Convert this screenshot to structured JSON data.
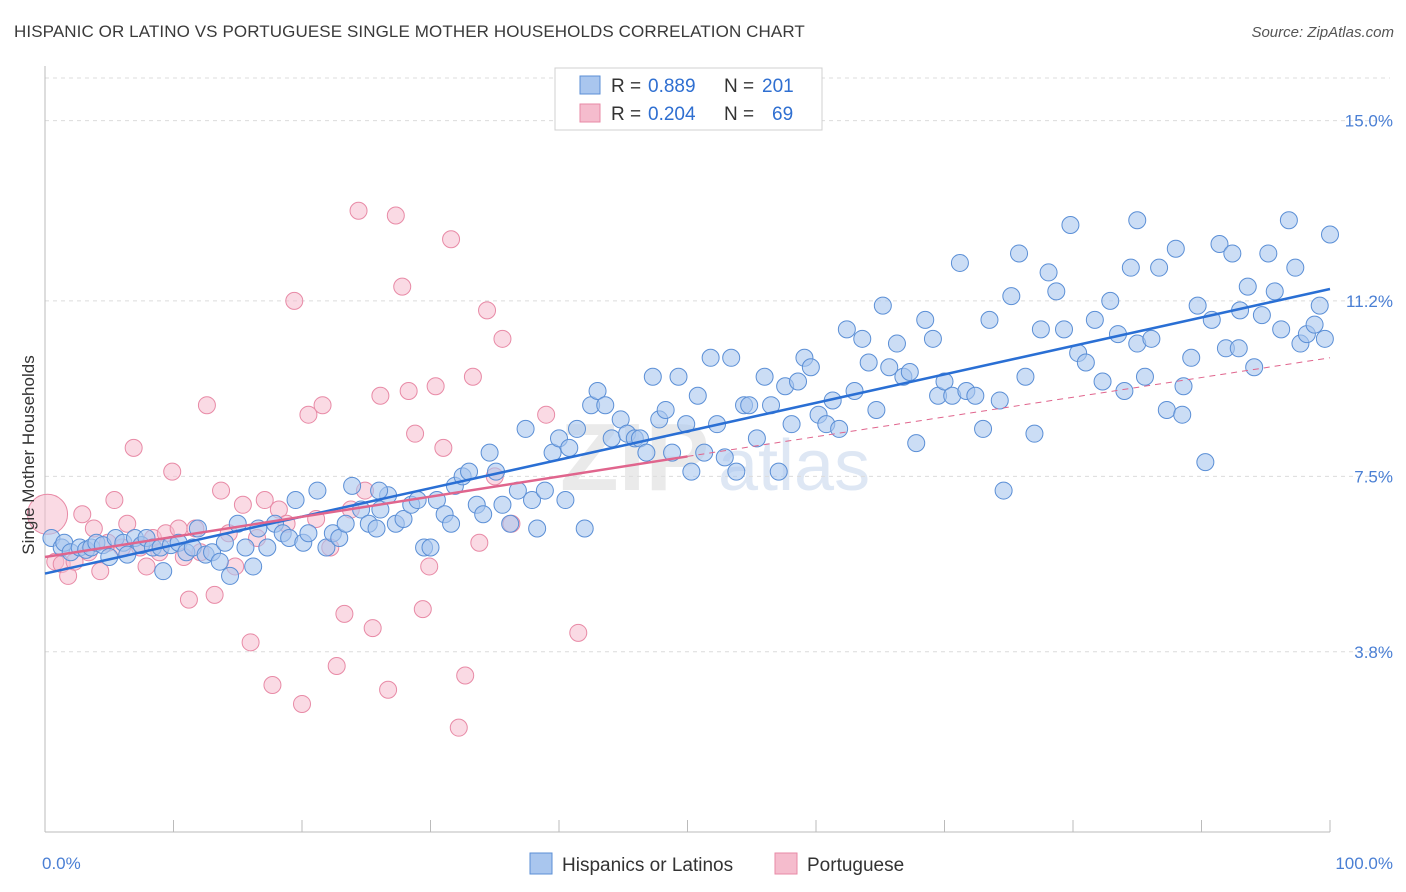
{
  "title": "HISPANIC OR LATINO VS PORTUGUESE SINGLE MOTHER HOUSEHOLDS CORRELATION CHART",
  "source": "Source: ZipAtlas.com",
  "watermark": {
    "zip": "ZIP",
    "atlas": "atlas"
  },
  "colors": {
    "blue_fill": "#a9c6ee",
    "blue_stroke": "#5b8fd6",
    "blue_line": "#2a6fd4",
    "pink_fill": "#f5bccd",
    "pink_stroke": "#e88aa6",
    "pink_line": "#e0658d",
    "grid": "#dcdcdc",
    "axis_text": "#4a7fd4"
  },
  "legend": {
    "rows": [
      {
        "r_label": "R =",
        "r_value": "0.889",
        "n_label": "N =",
        "n_value": "201"
      },
      {
        "r_label": "R =",
        "r_value": "0.204",
        "n_label": "N =",
        "n_value": "69"
      }
    ]
  },
  "chart_data": {
    "type": "scatter",
    "title": "HISPANIC OR LATINO VS PORTUGUESE SINGLE MOTHER HOUSEHOLDS CORRELATION CHART",
    "xlabel": "",
    "ylabel": "Single Mother Households",
    "xlim": [
      0,
      100
    ],
    "ylim": [
      0,
      15.9
    ],
    "x_tick_labels": [
      "0.0%",
      "100.0%"
    ],
    "y_ticks": [
      3.8,
      7.5,
      11.2,
      15.0
    ],
    "y_tick_labels": [
      "3.8%",
      "7.5%",
      "11.2%",
      "15.0%"
    ],
    "grid": true,
    "legend_position": "top-center",
    "series": [
      {
        "name": "Hispanics or Latinos",
        "color": "#a9c6ee",
        "trend": {
          "x": [
            0,
            100
          ],
          "y": [
            5.45,
            11.45
          ],
          "style": "solid"
        },
        "points": [
          [
            0.5,
            6.2
          ],
          [
            1.3,
            6.0
          ],
          [
            1.5,
            6.1
          ],
          [
            2.0,
            5.9
          ],
          [
            2.7,
            6.0
          ],
          [
            3.2,
            5.95
          ],
          [
            3.6,
            6.0
          ],
          [
            4.0,
            6.1
          ],
          [
            4.5,
            6.05
          ],
          [
            5.0,
            5.8
          ],
          [
            5.5,
            6.2
          ],
          [
            6.1,
            6.1
          ],
          [
            6.4,
            5.85
          ],
          [
            7.0,
            6.2
          ],
          [
            7.5,
            6.05
          ],
          [
            7.9,
            6.2
          ],
          [
            8.4,
            6.0
          ],
          [
            9.0,
            6.0
          ],
          [
            9.2,
            5.5
          ],
          [
            9.8,
            6.05
          ],
          [
            10.4,
            6.1
          ],
          [
            11.0,
            5.9
          ],
          [
            11.5,
            6.0
          ],
          [
            11.9,
            6.4
          ],
          [
            12.5,
            5.85
          ],
          [
            13.0,
            5.9
          ],
          [
            13.6,
            5.7
          ],
          [
            14.0,
            6.1
          ],
          [
            14.4,
            5.4
          ],
          [
            15.0,
            6.5
          ],
          [
            15.6,
            6.0
          ],
          [
            16.2,
            5.6
          ],
          [
            16.6,
            6.4
          ],
          [
            17.3,
            6.0
          ],
          [
            17.9,
            6.5
          ],
          [
            18.5,
            6.3
          ],
          [
            19.0,
            6.2
          ],
          [
            19.5,
            7.0
          ],
          [
            20.1,
            6.1
          ],
          [
            20.5,
            6.3
          ],
          [
            21.2,
            7.2
          ],
          [
            21.9,
            6.0
          ],
          [
            22.4,
            6.3
          ],
          [
            22.9,
            6.2
          ],
          [
            23.4,
            6.5
          ],
          [
            23.9,
            7.3
          ],
          [
            24.6,
            6.8
          ],
          [
            25.2,
            6.5
          ],
          [
            25.8,
            6.4
          ],
          [
            26.1,
            6.8
          ],
          [
            26.7,
            7.1
          ],
          [
            27.3,
            6.5
          ],
          [
            27.9,
            6.6
          ],
          [
            28.5,
            6.9
          ],
          [
            29.0,
            7.0
          ],
          [
            29.5,
            6.0
          ],
          [
            30.0,
            6.0
          ],
          [
            30.5,
            7.0
          ],
          [
            31.1,
            6.7
          ],
          [
            31.6,
            6.5
          ],
          [
            31.9,
            7.3
          ],
          [
            32.5,
            7.5
          ],
          [
            33.0,
            7.6
          ],
          [
            33.6,
            6.9
          ],
          [
            34.1,
            6.7
          ],
          [
            34.6,
            8.0
          ],
          [
            35.1,
            7.6
          ],
          [
            35.6,
            6.9
          ],
          [
            36.2,
            6.5
          ],
          [
            36.8,
            7.2
          ],
          [
            37.4,
            8.5
          ],
          [
            37.9,
            7.0
          ],
          [
            38.3,
            6.4
          ],
          [
            38.9,
            7.2
          ],
          [
            39.5,
            8.0
          ],
          [
            40.0,
            8.3
          ],
          [
            40.5,
            7.0
          ],
          [
            40.8,
            8.1
          ],
          [
            41.4,
            8.5
          ],
          [
            42.0,
            6.4
          ],
          [
            42.5,
            9.0
          ],
          [
            43.0,
            9.3
          ],
          [
            43.6,
            9.0
          ],
          [
            44.1,
            8.3
          ],
          [
            44.8,
            8.7
          ],
          [
            45.3,
            8.4
          ],
          [
            45.9,
            8.3
          ],
          [
            46.3,
            8.3
          ],
          [
            46.8,
            8.0
          ],
          [
            47.3,
            9.6
          ],
          [
            47.8,
            8.7
          ],
          [
            48.3,
            8.9
          ],
          [
            48.8,
            8.0
          ],
          [
            49.3,
            9.6
          ],
          [
            49.9,
            8.6
          ],
          [
            50.3,
            7.6
          ],
          [
            50.8,
            9.2
          ],
          [
            51.3,
            8.0
          ],
          [
            51.8,
            10.0
          ],
          [
            52.3,
            8.6
          ],
          [
            52.9,
            7.9
          ],
          [
            53.4,
            10.0
          ],
          [
            53.8,
            7.6
          ],
          [
            54.4,
            9.0
          ],
          [
            54.8,
            9.0
          ],
          [
            55.4,
            8.3
          ],
          [
            56.0,
            9.6
          ],
          [
            56.5,
            9.0
          ],
          [
            57.1,
            7.6
          ],
          [
            57.6,
            9.4
          ],
          [
            58.1,
            8.6
          ],
          [
            58.6,
            9.5
          ],
          [
            59.1,
            10.0
          ],
          [
            59.6,
            9.8
          ],
          [
            60.2,
            8.8
          ],
          [
            60.8,
            8.6
          ],
          [
            61.3,
            9.1
          ],
          [
            61.8,
            8.5
          ],
          [
            62.4,
            10.6
          ],
          [
            63.0,
            9.3
          ],
          [
            63.6,
            10.4
          ],
          [
            64.1,
            9.9
          ],
          [
            64.7,
            8.9
          ],
          [
            65.2,
            11.1
          ],
          [
            65.7,
            9.8
          ],
          [
            66.3,
            10.3
          ],
          [
            66.8,
            9.6
          ],
          [
            67.3,
            9.7
          ],
          [
            67.8,
            8.2
          ],
          [
            68.5,
            10.8
          ],
          [
            69.1,
            10.4
          ],
          [
            69.5,
            9.2
          ],
          [
            70.0,
            9.5
          ],
          [
            70.6,
            9.2
          ],
          [
            71.2,
            12.0
          ],
          [
            71.7,
            9.3
          ],
          [
            72.4,
            9.2
          ],
          [
            73.0,
            8.5
          ],
          [
            73.5,
            10.8
          ],
          [
            74.3,
            9.1
          ],
          [
            74.6,
            7.2
          ],
          [
            75.2,
            11.3
          ],
          [
            75.8,
            12.2
          ],
          [
            76.3,
            9.6
          ],
          [
            77.0,
            8.4
          ],
          [
            77.5,
            10.6
          ],
          [
            78.1,
            11.8
          ],
          [
            78.7,
            11.4
          ],
          [
            79.3,
            10.6
          ],
          [
            79.8,
            12.8
          ],
          [
            80.4,
            10.1
          ],
          [
            81.0,
            9.9
          ],
          [
            81.7,
            10.8
          ],
          [
            82.3,
            9.5
          ],
          [
            82.9,
            11.2
          ],
          [
            83.5,
            10.5
          ],
          [
            84.0,
            9.3
          ],
          [
            84.5,
            11.9
          ],
          [
            85.0,
            10.3
          ],
          [
            85.6,
            9.6
          ],
          [
            86.1,
            10.4
          ],
          [
            86.7,
            11.9
          ],
          [
            87.3,
            8.9
          ],
          [
            88.0,
            12.3
          ],
          [
            88.6,
            9.4
          ],
          [
            89.2,
            10.0
          ],
          [
            89.7,
            11.1
          ],
          [
            90.3,
            7.8
          ],
          [
            90.8,
            10.8
          ],
          [
            91.4,
            12.4
          ],
          [
            91.9,
            10.2
          ],
          [
            92.4,
            12.2
          ],
          [
            92.9,
            10.2
          ],
          [
            93.6,
            11.5
          ],
          [
            94.1,
            9.8
          ],
          [
            94.7,
            10.9
          ],
          [
            95.2,
            12.2
          ],
          [
            95.7,
            11.4
          ],
          [
            96.2,
            10.6
          ],
          [
            96.8,
            12.9
          ],
          [
            97.3,
            11.9
          ],
          [
            97.7,
            10.3
          ],
          [
            98.2,
            10.5
          ],
          [
            98.8,
            10.7
          ],
          [
            99.2,
            11.1
          ],
          [
            99.6,
            10.4
          ],
          [
            100.0,
            12.6
          ],
          [
            85.0,
            12.9
          ],
          [
            88.5,
            8.8
          ],
          [
            93.0,
            11.0
          ],
          [
            26.0,
            7.2
          ]
        ]
      },
      {
        "name": "Portuguese",
        "color": "#f5bccd",
        "trend": {
          "x": [
            0,
            50
          ],
          "y": [
            5.8,
            7.92
          ],
          "style": "solid"
        },
        "trend_ext": {
          "x": [
            50,
            100
          ],
          "y": [
            7.92,
            10.0
          ],
          "style": "dashed"
        },
        "points": [
          [
            0.2,
            6.7
          ],
          [
            0.8,
            5.7
          ],
          [
            1.3,
            5.65
          ],
          [
            1.8,
            5.4
          ],
          [
            2.3,
            5.7
          ],
          [
            2.9,
            6.7
          ],
          [
            3.4,
            5.9
          ],
          [
            3.8,
            6.4
          ],
          [
            4.3,
            5.5
          ],
          [
            4.9,
            6.1
          ],
          [
            5.4,
            7.0
          ],
          [
            6.0,
            6.0
          ],
          [
            6.4,
            6.5
          ],
          [
            6.9,
            8.1
          ],
          [
            7.4,
            6.0
          ],
          [
            7.9,
            5.6
          ],
          [
            8.4,
            6.2
          ],
          [
            8.9,
            5.9
          ],
          [
            9.4,
            6.3
          ],
          [
            9.9,
            7.6
          ],
          [
            10.4,
            6.4
          ],
          [
            10.8,
            5.8
          ],
          [
            11.2,
            4.9
          ],
          [
            11.7,
            6.4
          ],
          [
            12.1,
            5.9
          ],
          [
            12.6,
            9.0
          ],
          [
            13.2,
            5.0
          ],
          [
            13.7,
            7.2
          ],
          [
            14.3,
            6.3
          ],
          [
            14.8,
            5.6
          ],
          [
            15.4,
            6.9
          ],
          [
            16.0,
            4.0
          ],
          [
            16.5,
            6.2
          ],
          [
            17.1,
            7.0
          ],
          [
            17.7,
            3.1
          ],
          [
            18.2,
            6.8
          ],
          [
            18.8,
            6.5
          ],
          [
            19.4,
            11.2
          ],
          [
            20.0,
            2.7
          ],
          [
            20.5,
            8.8
          ],
          [
            21.1,
            6.6
          ],
          [
            21.6,
            9.0
          ],
          [
            22.2,
            6.0
          ],
          [
            22.7,
            3.5
          ],
          [
            23.3,
            4.6
          ],
          [
            23.8,
            6.8
          ],
          [
            24.4,
            13.1
          ],
          [
            24.9,
            7.2
          ],
          [
            25.5,
            4.3
          ],
          [
            26.1,
            9.2
          ],
          [
            26.7,
            3.0
          ],
          [
            27.3,
            13.0
          ],
          [
            27.8,
            11.5
          ],
          [
            28.3,
            9.3
          ],
          [
            28.8,
            8.4
          ],
          [
            29.4,
            4.7
          ],
          [
            29.9,
            5.6
          ],
          [
            30.4,
            9.4
          ],
          [
            31.0,
            8.1
          ],
          [
            31.6,
            12.5
          ],
          [
            32.2,
            2.2
          ],
          [
            32.7,
            3.3
          ],
          [
            33.3,
            9.6
          ],
          [
            33.8,
            6.1
          ],
          [
            34.4,
            11.0
          ],
          [
            35.0,
            7.5
          ],
          [
            35.6,
            10.4
          ],
          [
            36.3,
            6.5
          ],
          [
            39.0,
            8.8
          ],
          [
            41.5,
            4.2
          ]
        ]
      }
    ]
  },
  "bottom_legend": {
    "items": [
      {
        "label": "Hispanics or Latinos"
      },
      {
        "label": "Portuguese"
      }
    ]
  }
}
